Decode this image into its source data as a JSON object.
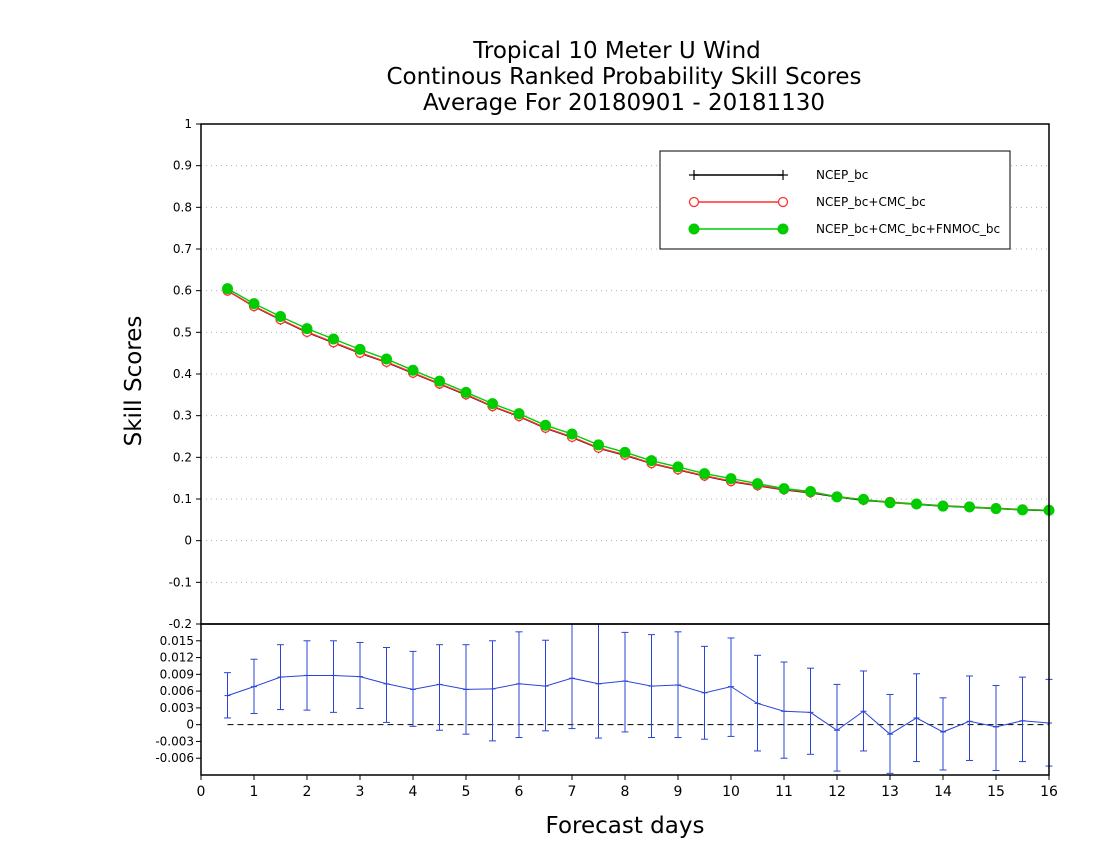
{
  "chart_data": {
    "type": "line",
    "title_lines": [
      "Tropical 10 Meter U Wind",
      "Continous Ranked Probability Skill Scores",
      "Average For 20180901 - 20181130"
    ],
    "xlabel": "Forecast days",
    "ylabel": "Skill Scores",
    "xlim": [
      0,
      16
    ],
    "x_ticks": [
      0,
      1,
      2,
      3,
      4,
      5,
      6,
      7,
      8,
      9,
      10,
      11,
      12,
      13,
      14,
      15,
      16
    ],
    "upper_panel": {
      "ylim": [
        -0.2,
        1
      ],
      "y_ticks": [
        -0.2,
        -0.1,
        0,
        0.1,
        0.2,
        0.3,
        0.4,
        0.5,
        0.6,
        0.7,
        0.8,
        0.9,
        1
      ],
      "y_tick_labels": [
        "-0.2",
        "-0.1",
        "0",
        "0.1",
        "0.2",
        "0.3",
        "0.4",
        "0.5",
        "0.6",
        "0.7",
        "0.8",
        "0.9",
        "1"
      ],
      "grid": true,
      "x": [
        0.5,
        1,
        1.5,
        2,
        2.5,
        3,
        3.5,
        4,
        4.5,
        5,
        5.5,
        6,
        6.5,
        7,
        7.5,
        8,
        8.5,
        9,
        9.5,
        10,
        10.5,
        11,
        11.5,
        12,
        12.5,
        13,
        13.5,
        14,
        14.5,
        15,
        15.5,
        16
      ],
      "series": [
        {
          "name": "NCEP_bc",
          "color": "#000000",
          "marker": "plus",
          "values": [
            0.6,
            0.562,
            0.53,
            0.5,
            0.475,
            0.45,
            0.428,
            0.402,
            0.376,
            0.35,
            0.322,
            0.298,
            0.27,
            0.248,
            0.222,
            0.205,
            0.185,
            0.17,
            0.155,
            0.142,
            0.132,
            0.122,
            0.115,
            0.105,
            0.097,
            0.092,
            0.087,
            0.083,
            0.08,
            0.077,
            0.074,
            0.072
          ]
        },
        {
          "name": "NCEP_bc+CMC_bc",
          "color": "#ff3030",
          "marker": "open-circle",
          "values": [
            0.6,
            0.563,
            0.531,
            0.501,
            0.476,
            0.451,
            0.429,
            0.403,
            0.377,
            0.351,
            0.323,
            0.299,
            0.271,
            0.249,
            0.223,
            0.206,
            0.186,
            0.171,
            0.156,
            0.143,
            0.133,
            0.123,
            0.116,
            0.106,
            0.098,
            0.093,
            0.088,
            0.084,
            0.081,
            0.078,
            0.075,
            0.073
          ]
        },
        {
          "name": "NCEP_bc+CMC_bc+FNMOC_bc",
          "color": "#00cc00",
          "marker": "filled-circle",
          "values": [
            0.605,
            0.569,
            0.538,
            0.509,
            0.484,
            0.459,
            0.436,
            0.409,
            0.383,
            0.356,
            0.329,
            0.305,
            0.277,
            0.256,
            0.23,
            0.212,
            0.192,
            0.177,
            0.161,
            0.149,
            0.137,
            0.125,
            0.118,
            0.105,
            0.099,
            0.091,
            0.088,
            0.083,
            0.081,
            0.077,
            0.074,
            0.073
          ]
        }
      ],
      "legend_position": "top-right"
    },
    "lower_panel": {
      "ylim": [
        -0.009,
        0.018
      ],
      "y_ticks": [
        -0.006,
        -0.003,
        0,
        0.003,
        0.006,
        0.009,
        0.012,
        0.015
      ],
      "y_tick_labels": [
        "-0.006",
        "-0.003",
        "0",
        "0.003",
        "0.006",
        "0.009",
        "0.012",
        "0.015"
      ],
      "zero_line": "dashed",
      "series": [
        {
          "color": "#2a44d8",
          "values": [
            0.0052,
            0.0068,
            0.0085,
            0.0088,
            0.0088,
            0.0086,
            0.0073,
            0.0063,
            0.0072,
            0.0063,
            0.0064,
            0.0073,
            0.0069,
            0.0083,
            0.0073,
            0.0078,
            0.0069,
            0.0071,
            0.0057,
            0.0068,
            0.0038,
            0.0024,
            0.0022,
            -0.001,
            0.0024,
            -0.0017,
            0.0012,
            -0.0013,
            0.0006,
            -0.0004,
            0.0007,
            0.0003
          ],
          "err_low": [
            0.0012,
            0.002,
            0.0027,
            0.0026,
            0.0022,
            0.0029,
            0.0004,
            -0.0003,
            -0.001,
            -0.0017,
            -0.0029,
            -0.0023,
            -0.0011,
            -0.0007,
            -0.0024,
            -0.0013,
            -0.0023,
            -0.0023,
            -0.0026,
            -0.0021,
            -0.0047,
            -0.006,
            -0.0053,
            -0.0083,
            -0.0047,
            -0.0087,
            -0.0066,
            -0.0081,
            -0.0064,
            -0.0082,
            -0.0066,
            -0.0074
          ],
          "err_high": [
            0.0093,
            0.0117,
            0.0143,
            0.015,
            0.015,
            0.0147,
            0.0138,
            0.0131,
            0.0143,
            0.0143,
            0.015,
            0.0166,
            0.0151,
            0.0185,
            0.0183,
            0.0165,
            0.0161,
            0.0166,
            0.014,
            0.0155,
            0.0124,
            0.0112,
            0.0101,
            0.0072,
            0.0096,
            0.0054,
            0.0091,
            0.0048,
            0.0087,
            0.007,
            0.0085,
            0.0081
          ]
        }
      ]
    }
  }
}
